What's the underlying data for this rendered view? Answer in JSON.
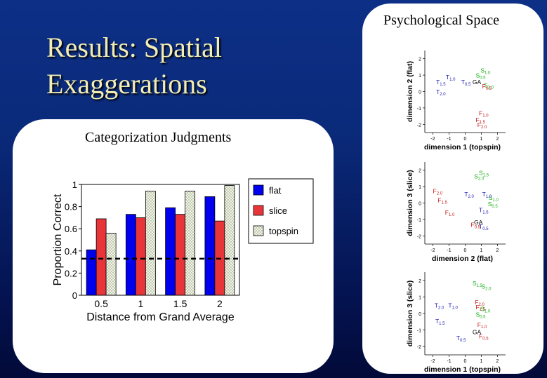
{
  "slide": {
    "title_line1": "Results:  Spatial",
    "title_line2": "Exaggerations"
  },
  "left_panel": {
    "title": "Categorization Judgments"
  },
  "right_panel": {
    "title": "Psychological Space"
  },
  "colors": {
    "background": "#0a2a7a",
    "title_text": "#f2edb4",
    "flat": "#0000ee",
    "slice": "#e8353a",
    "topspin": "#f2f5e6",
    "blue_label": "#1818b4",
    "red_label": "#c41818",
    "green_label": "#18b018",
    "black_label": "#000000"
  },
  "chart_data": [
    {
      "type": "bar",
      "categories": [
        "0.5",
        "1",
        "1.5",
        "2"
      ],
      "xlabel": "Distance from Grand Average",
      "ylabel": "Proportion Correct",
      "ylim": [
        0,
        1
      ],
      "yticks": [
        "0",
        "0.2",
        "0.4",
        "0.6",
        "0.8",
        "1"
      ],
      "series": [
        {
          "name": "flat",
          "values": [
            0.41,
            0.73,
            0.79,
            0.89
          ]
        },
        {
          "name": "slice",
          "values": [
            0.69,
            0.7,
            0.73,
            0.67
          ]
        },
        {
          "name": "topspin",
          "values": [
            0.56,
            0.94,
            0.94,
            0.99
          ]
        }
      ],
      "reference_line": 0.33,
      "legend_position": "right"
    },
    {
      "type": "scatter",
      "xlabel": "dimension 1 (topspin)",
      "ylabel": "dimension 2 (flat)",
      "xlim": [
        -2.5,
        2.5
      ],
      "ylim": [
        -2.5,
        2.5
      ],
      "xticks": [
        "-2",
        "-1",
        "0",
        "1",
        "2"
      ],
      "yticks": [
        "2",
        "1",
        "0",
        "-1",
        "-2"
      ],
      "points": [
        {
          "label": "T",
          "sub": "1.5",
          "x": -1.8,
          "y": 0.45,
          "color": "blue"
        },
        {
          "label": "T",
          "sub": "1.0",
          "x": -1.2,
          "y": 0.75,
          "color": "blue"
        },
        {
          "label": "T",
          "sub": "0.5",
          "x": -0.25,
          "y": 0.45,
          "color": "blue"
        },
        {
          "label": "T",
          "sub": "2.0",
          "x": -1.8,
          "y": -0.15,
          "color": "blue"
        },
        {
          "label": "GA",
          "sub": "",
          "x": 0.45,
          "y": 0.45,
          "color": "black"
        },
        {
          "label": "S",
          "sub": "1.0",
          "x": 0.95,
          "y": 1.15,
          "color": "green"
        },
        {
          "label": "S",
          "sub": "0.5",
          "x": 0.65,
          "y": 0.85,
          "color": "green"
        },
        {
          "label": "S",
          "sub": "2.0",
          "x": 1.15,
          "y": 0.25,
          "color": "green"
        },
        {
          "label": "F",
          "sub": "0.5",
          "x": 1.05,
          "y": 0.2,
          "color": "red"
        },
        {
          "label": "F",
          "sub": "1.0",
          "x": 0.85,
          "y": -1.45,
          "color": "red"
        },
        {
          "label": "F",
          "sub": "1.5",
          "x": 0.65,
          "y": -1.85,
          "color": "red"
        },
        {
          "label": "F",
          "sub": "2.0",
          "x": 0.75,
          "y": -2.15,
          "color": "red"
        }
      ]
    },
    {
      "type": "scatter",
      "xlabel": "dimension 2 (flat)",
      "ylabel": "dimension 3 (slice)",
      "xlim": [
        -2.5,
        2.5
      ],
      "ylim": [
        -2.5,
        2.5
      ],
      "xticks": [
        "-2",
        "-1",
        "0",
        "1",
        "2"
      ],
      "yticks": [
        "2",
        "1",
        "0",
        "-1",
        "-2"
      ],
      "points": [
        {
          "label": "S",
          "sub": "1.5",
          "x": 0.85,
          "y": 1.7,
          "color": "green"
        },
        {
          "label": "S",
          "sub": "2.0",
          "x": 0.55,
          "y": 1.5,
          "color": "green"
        },
        {
          "label": "S",
          "sub": "1.0",
          "x": 1.45,
          "y": 0.2,
          "color": "green"
        },
        {
          "label": "S",
          "sub": "0.5",
          "x": 1.4,
          "y": -0.2,
          "color": "green"
        },
        {
          "label": "T",
          "sub": "2.0",
          "x": -0.05,
          "y": 0.4,
          "color": "blue"
        },
        {
          "label": "T",
          "sub": "1.0",
          "x": 1.05,
          "y": 0.4,
          "color": "blue"
        },
        {
          "label": "T",
          "sub": "1.5",
          "x": 0.85,
          "y": -0.55,
          "color": "blue"
        },
        {
          "label": "F",
          "sub": "2.0",
          "x": -2.0,
          "y": 0.6,
          "color": "red"
        },
        {
          "label": "F",
          "sub": "1.5",
          "x": -1.7,
          "y": 0.05,
          "color": "red"
        },
        {
          "label": "F",
          "sub": "1.0",
          "x": -1.25,
          "y": -0.7,
          "color": "red"
        },
        {
          "label": "F",
          "sub": "0.5",
          "x": 0.35,
          "y": -1.45,
          "color": "red"
        },
        {
          "label": "T",
          "sub": "0.5",
          "x": 0.85,
          "y": -1.55,
          "color": "blue"
        },
        {
          "label": "GA",
          "sub": "",
          "x": 0.55,
          "y": -1.3,
          "color": "black"
        }
      ]
    },
    {
      "type": "scatter",
      "xlabel": "dimension 1 (topspin)",
      "ylabel": "dimension 3 (slice)",
      "xlim": [
        -2.5,
        2.5
      ],
      "ylim": [
        -2.5,
        2.5
      ],
      "xticks": [
        "-2",
        "-1",
        "0",
        "1",
        "2"
      ],
      "yticks": [
        "2",
        "1",
        "0",
        "-1",
        "-2"
      ],
      "points": [
        {
          "label": "S",
          "sub": "1.5",
          "x": 0.45,
          "y": 1.7,
          "color": "green"
        },
        {
          "label": "S",
          "sub": "2.0",
          "x": 1.0,
          "y": 1.5,
          "color": "green"
        },
        {
          "label": "F",
          "sub": "2.0",
          "x": 0.6,
          "y": 0.55,
          "color": "red"
        },
        {
          "label": "F",
          "sub": "1.5",
          "x": 0.65,
          "y": 0.25,
          "color": "red"
        },
        {
          "label": "S",
          "sub": "1.0",
          "x": 0.95,
          "y": 0.15,
          "color": "green"
        },
        {
          "label": "S",
          "sub": "0.5",
          "x": 0.65,
          "y": -0.2,
          "color": "green"
        },
        {
          "label": "F",
          "sub": "1.0",
          "x": 0.75,
          "y": -0.8,
          "color": "red"
        },
        {
          "label": "F",
          "sub": "0.5",
          "x": 0.85,
          "y": -1.5,
          "color": "red"
        },
        {
          "label": "T",
          "sub": "2.0",
          "x": -1.9,
          "y": 0.35,
          "color": "blue"
        },
        {
          "label": "T",
          "sub": "1.0",
          "x": -1.05,
          "y": 0.35,
          "color": "blue"
        },
        {
          "label": "T",
          "sub": "1.5",
          "x": -1.85,
          "y": -0.6,
          "color": "blue"
        },
        {
          "label": "T",
          "sub": "0.5",
          "x": -0.55,
          "y": -1.6,
          "color": "blue"
        },
        {
          "label": "GA",
          "sub": "",
          "x": 0.45,
          "y": -1.25,
          "color": "black"
        }
      ]
    }
  ]
}
